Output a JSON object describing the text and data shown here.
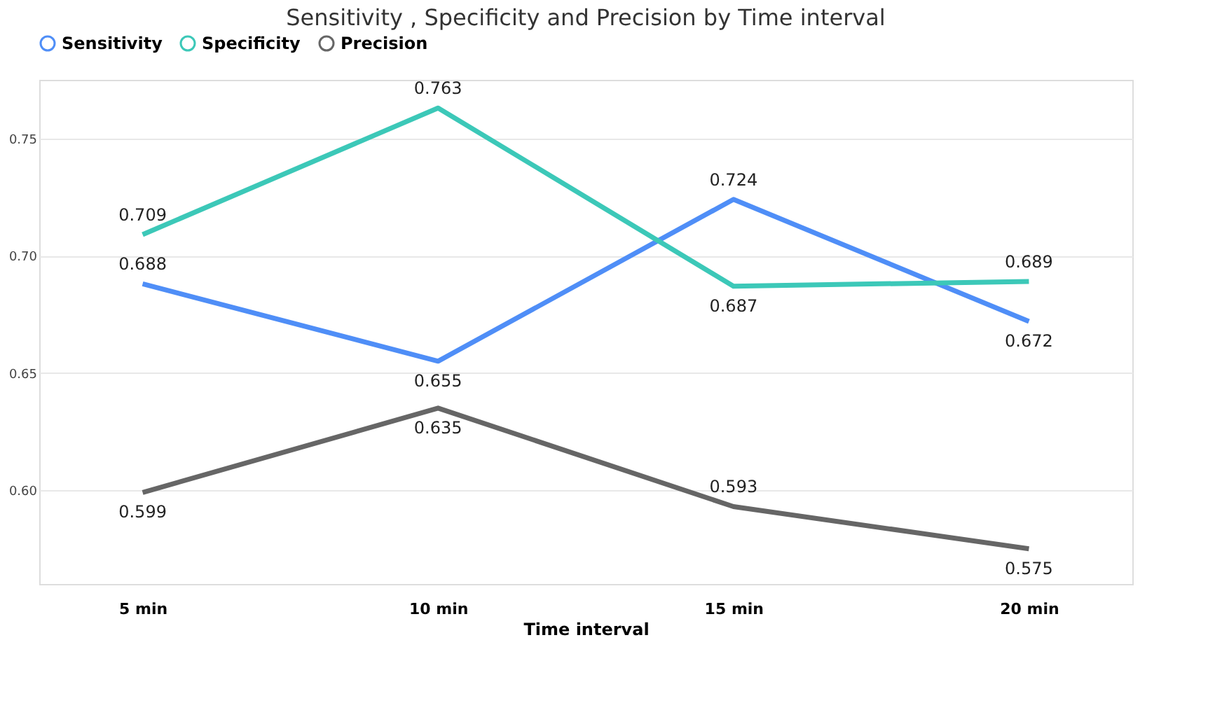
{
  "chart_data": {
    "type": "line",
    "title": "Sensitivity , Specificity and Precision by Time interval",
    "xlabel": "Time interval",
    "categories": [
      "5 min",
      "10 min",
      "15 min",
      "20 min"
    ],
    "series": [
      {
        "name": "Sensitivity",
        "color": "#4f8ef7",
        "values": [
          0.688,
          0.655,
          0.724,
          0.672
        ]
      },
      {
        "name": "Specificity",
        "color": "#3cc8b8",
        "values": [
          0.709,
          0.763,
          0.687,
          0.689
        ]
      },
      {
        "name": "Precision",
        "color": "#666666",
        "values": [
          0.599,
          0.635,
          0.593,
          0.575
        ]
      }
    ],
    "ylim": [
      0.56,
      0.775
    ],
    "yticks": [
      {
        "value": 0.6,
        "label": "0.60"
      },
      {
        "value": 0.65,
        "label": "0.65"
      },
      {
        "value": 0.7,
        "label": "0.70"
      },
      {
        "value": 0.75,
        "label": "0.75"
      }
    ],
    "grid": "y",
    "legend": "top",
    "marker": "none",
    "line_style": "solid",
    "data_labels": true
  }
}
